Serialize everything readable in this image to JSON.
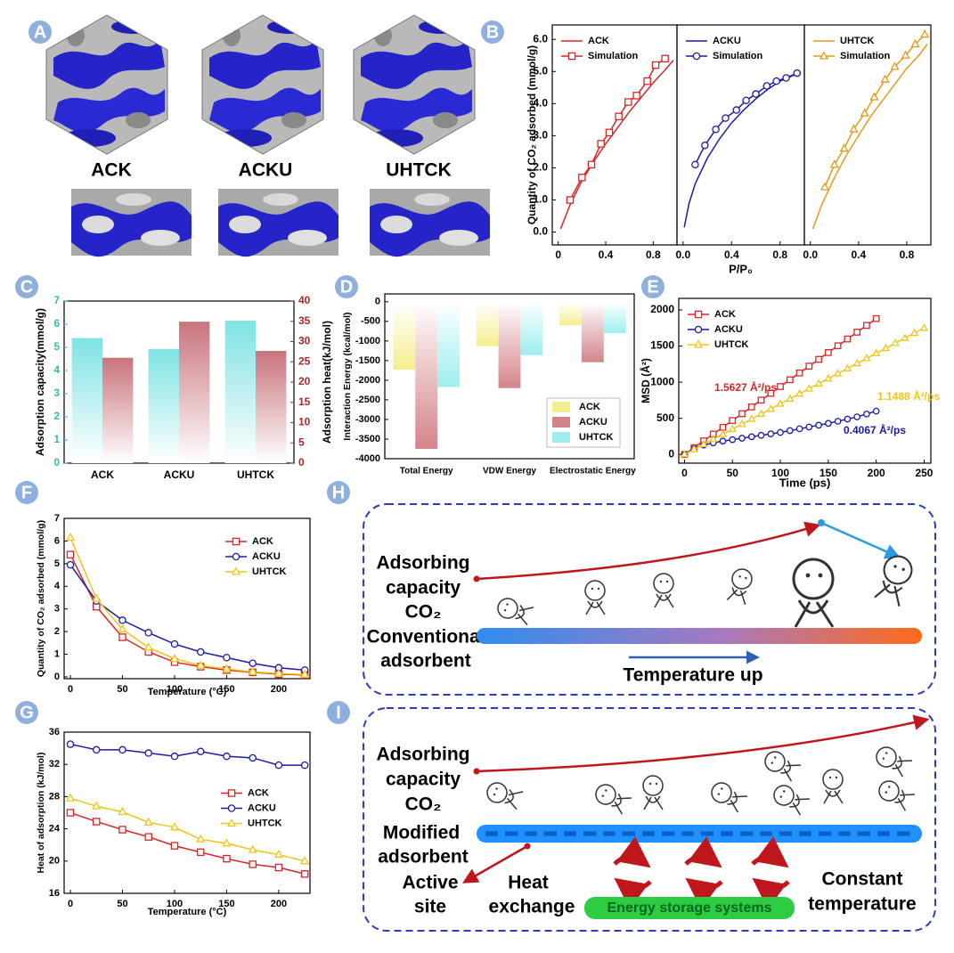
{
  "panel_labels": [
    "A",
    "B",
    "C",
    "D",
    "E",
    "F",
    "G",
    "H",
    "I"
  ],
  "structure_labels": [
    "ACK",
    "ACKU",
    "UHTCK"
  ],
  "diagram_h": {
    "lines": [
      "Adsorbing",
      "capacity",
      "CO₂",
      "Conventional",
      "adsorbent"
    ],
    "arrow_label": "Temperature up"
  },
  "diagram_i": {
    "lines": [
      "Adsorbing",
      "capacity",
      "CO₂",
      "Modified",
      "adsorbent"
    ],
    "active_site": [
      "Active",
      "site"
    ],
    "heat_exchange": [
      "Heat",
      "exchange"
    ],
    "storage": "Energy storage systems",
    "constant_temperature": [
      "Constant",
      "temperature"
    ]
  },
  "chart_data": [
    {
      "type": "line",
      "y_label": "Quantity of CO₂ adsorbed (mmol/g)",
      "xlim": [
        -0.05,
        1.0
      ],
      "ylim": [
        -0.4,
        6.45
      ],
      "xticks": [
        {
          "value": 0,
          "label": "0"
        },
        0.4,
        0.8
      ],
      "yticks": [
        {
          "value": 0,
          "label": "0.0"
        },
        {
          "value": 1,
          "label": "1.0"
        },
        {
          "value": 2,
          "label": "2.0"
        },
        {
          "value": 3,
          "label": "3.0"
        },
        {
          "value": 4,
          "label": "4.0"
        },
        {
          "value": 5,
          "label": "5.0"
        },
        {
          "value": 6,
          "label": "6.0"
        }
      ],
      "legend": "upper left",
      "series": [
        {
          "name": "ACK",
          "color": "#d62728",
          "x": [
            0.02,
            0.1,
            0.2,
            0.3,
            0.4,
            0.5,
            0.6,
            0.7,
            0.8,
            0.9,
            0.97
          ],
          "values": [
            0.1,
            0.85,
            1.6,
            2.2,
            2.75,
            3.25,
            3.75,
            4.2,
            4.65,
            5.05,
            5.35
          ]
        },
        {
          "name": "Simulation",
          "color": "#d62728",
          "marker": "square",
          "x": [
            0.1,
            0.2,
            0.28,
            0.36,
            0.43,
            0.51,
            0.59,
            0.66,
            0.75,
            0.82,
            0.9
          ],
          "values": [
            1.0,
            1.7,
            2.1,
            2.75,
            3.1,
            3.6,
            4.05,
            4.25,
            4.7,
            5.2,
            5.4
          ]
        }
      ]
    },
    {
      "type": "line",
      "x_label": "P/P₀",
      "xlim": [
        -0.05,
        1.0
      ],
      "ylim": [
        -0.4,
        6.45
      ],
      "xticks": [
        {
          "value": 0,
          "label": "0.0"
        },
        0.4,
        0.8
      ],
      "legend": "upper left",
      "series": [
        {
          "name": "ACKU",
          "color": "#1c1ca6",
          "x": [
            0.01,
            0.05,
            0.1,
            0.2,
            0.3,
            0.4,
            0.5,
            0.6,
            0.7,
            0.8,
            0.92
          ],
          "values": [
            0.15,
            0.9,
            1.5,
            2.3,
            2.9,
            3.4,
            3.8,
            4.15,
            4.45,
            4.7,
            4.9
          ]
        },
        {
          "name": "Simulation",
          "color": "#1c1ca6",
          "marker": "circle",
          "x": [
            0.1,
            0.18,
            0.27,
            0.35,
            0.44,
            0.52,
            0.6,
            0.69,
            0.77,
            0.85,
            0.94
          ],
          "values": [
            2.1,
            2.7,
            3.2,
            3.55,
            3.8,
            4.1,
            4.3,
            4.55,
            4.7,
            4.8,
            4.95
          ]
        }
      ]
    },
    {
      "type": "line",
      "xlim": [
        -0.05,
        1.0
      ],
      "ylim": [
        -0.4,
        6.45
      ],
      "xticks": [
        {
          "value": 0,
          "label": "0.0"
        },
        0.4,
        0.8
      ],
      "legend": "upper left",
      "series": [
        {
          "name": "UHTCK",
          "color": "#e39a1e",
          "x": [
            0.02,
            0.1,
            0.2,
            0.3,
            0.4,
            0.5,
            0.6,
            0.7,
            0.8,
            0.9,
            0.97
          ],
          "values": [
            0.1,
            0.9,
            1.7,
            2.4,
            3.0,
            3.6,
            4.1,
            4.6,
            5.1,
            5.5,
            5.85
          ]
        },
        {
          "name": "Simulation",
          "color": "#e39a1e",
          "marker": "triangle",
          "x": [
            0.12,
            0.2,
            0.28,
            0.36,
            0.45,
            0.53,
            0.62,
            0.7,
            0.79,
            0.87,
            0.95
          ],
          "values": [
            1.4,
            2.1,
            2.6,
            3.2,
            3.7,
            4.2,
            4.75,
            5.15,
            5.5,
            5.85,
            6.15
          ]
        }
      ]
    },
    {
      "type": "bar",
      "y_label": "Adsorption capacity(mmol/g)",
      "y2_label": "Adsorption heat(kJ/mol)",
      "categories": [
        "ACK",
        "ACKU",
        "UHTCK"
      ],
      "ylim": [
        0,
        7
      ],
      "yticks": [
        0,
        1,
        2,
        3,
        4,
        5,
        6,
        7
      ],
      "y2lim": [
        0,
        40
      ],
      "y2ticks": [
        0,
        5,
        10,
        15,
        20,
        25,
        30,
        35,
        40
      ],
      "ycolor": "#2fbcbc",
      "y2color": "#a52a2a",
      "series": [
        {
          "color": "#7fe3e3",
          "values": [
            5.4,
            4.93,
            6.15
          ]
        },
        {
          "color": "#c9747c",
          "axis": "y2",
          "values": [
            26,
            34.9,
            27.7
          ]
        }
      ]
    },
    {
      "type": "bar",
      "y_label": "Interaction Energy (kcal/mol)",
      "categories": [
        "Total Energy",
        "VDW Energy",
        "Electrostatic Energy"
      ],
      "ylim": [
        -4000,
        200
      ],
      "yticks": [
        0,
        -500,
        -1000,
        -1500,
        -2000,
        -2500,
        -3000,
        -3500,
        -4000
      ],
      "legend": "lower right",
      "series": [
        {
          "name": "ACK",
          "color": "#f5ee8e",
          "values": [
            -1730,
            -1130,
            -600
          ]
        },
        {
          "name": "ACKU",
          "color": "#d48489",
          "values": [
            -3750,
            -2200,
            -1540
          ]
        },
        {
          "name": "UHTCK",
          "color": "#9eeeee",
          "values": [
            -2170,
            -1360,
            -800
          ]
        }
      ]
    },
    {
      "type": "line",
      "y_label": "MSD (Å²)",
      "x_label": "Time (ps)",
      "xlim": [
        -6,
        257
      ],
      "ylim": [
        -120,
        2160
      ],
      "xticks": [
        0,
        50,
        100,
        150,
        200,
        250
      ],
      "yticks": [
        0,
        500,
        1000,
        1500,
        2000
      ],
      "legend": "upper left",
      "annotations": [
        "1.5627 Å²/ps",
        "0.4067 Å²/ps",
        "1.1488 Å²/ps"
      ],
      "series": [
        {
          "name": "ACK",
          "color": "#d62728",
          "marker": "square",
          "x": [
            0,
            10,
            20,
            30,
            40,
            50,
            60,
            70,
            80,
            90,
            100,
            110,
            120,
            130,
            140,
            150,
            160,
            170,
            180,
            190,
            200
          ],
          "values": [
            0,
            94,
            188,
            282,
            376,
            470,
            564,
            658,
            752,
            846,
            940,
            1034,
            1128,
            1222,
            1316,
            1410,
            1504,
            1598,
            1692,
            1786,
            1880
          ]
        },
        {
          "name": "ACKU",
          "color": "#1c1ca6",
          "marker": "circle",
          "x": [
            0,
            10,
            20,
            30,
            40,
            50,
            60,
            70,
            80,
            90,
            100,
            110,
            120,
            130,
            140,
            150,
            160,
            170,
            180,
            190,
            200
          ],
          "values": [
            0,
            80,
            130,
            160,
            185,
            205,
            225,
            245,
            265,
            285,
            305,
            330,
            355,
            380,
            405,
            430,
            460,
            490,
            520,
            560,
            600
          ]
        },
        {
          "name": "UHTCK",
          "color": "#f0c419",
          "marker": "triangle",
          "x": [
            0,
            10,
            20,
            30,
            40,
            50,
            60,
            70,
            80,
            90,
            100,
            110,
            120,
            130,
            140,
            150,
            160,
            170,
            180,
            190,
            200,
            210,
            220,
            230,
            240,
            250
          ],
          "values": [
            0,
            70,
            140,
            210,
            280,
            350,
            420,
            490,
            560,
            630,
            700,
            770,
            840,
            910,
            980,
            1050,
            1120,
            1190,
            1260,
            1330,
            1400,
            1470,
            1540,
            1610,
            1680,
            1750
          ]
        }
      ]
    },
    {
      "type": "line",
      "y_label": "Quantity of CO₂ adsorbed (mmol/g)",
      "x_label": "Temperature (°C)",
      "xlim": [
        -6,
        230
      ],
      "ylim": [
        -0.08,
        7
      ],
      "xticks": [
        0,
        50,
        100,
        150,
        200
      ],
      "yticks": [
        0,
        1,
        2,
        3,
        4,
        5,
        6,
        7
      ],
      "legend": "upper right",
      "x": [
        0,
        25,
        50,
        75,
        100,
        125,
        150,
        175,
        200,
        225
      ],
      "series": [
        {
          "name": "ACK",
          "color": "#d62728",
          "marker": "square",
          "values": [
            5.4,
            3.1,
            1.75,
            1.1,
            0.65,
            0.45,
            0.3,
            0.2,
            0.12,
            0.08
          ]
        },
        {
          "name": "ACKU",
          "color": "#1c1ca6",
          "marker": "circle",
          "values": [
            4.95,
            3.35,
            2.5,
            1.95,
            1.45,
            1.1,
            0.85,
            0.6,
            0.4,
            0.3
          ]
        },
        {
          "name": "UHTCK",
          "color": "#f0c419",
          "marker": "triangle",
          "values": [
            6.15,
            3.45,
            2.1,
            1.3,
            0.8,
            0.5,
            0.35,
            0.22,
            0.15,
            0.1
          ]
        }
      ]
    },
    {
      "type": "line",
      "y_label": "Heat of adsorption (kJ/mol)",
      "x_label": "Temperature (°C)",
      "xlim": [
        -6,
        230
      ],
      "ylim": [
        16,
        36
      ],
      "xticks": [
        0,
        50,
        100,
        150,
        200
      ],
      "yticks": [
        16,
        20,
        24,
        28,
        32,
        36
      ],
      "legend": "center right",
      "x": [
        0,
        25,
        50,
        75,
        100,
        125,
        150,
        175,
        200,
        225
      ],
      "series": [
        {
          "name": "ACK",
          "color": "#d62728",
          "marker": "square",
          "values": [
            26,
            24.9,
            23.9,
            23,
            21.9,
            21.1,
            20.3,
            19.6,
            19.2,
            18.4
          ]
        },
        {
          "name": "ACKU",
          "color": "#1c1ca6",
          "marker": "circle",
          "values": [
            34.5,
            33.8,
            33.8,
            33.4,
            33,
            33.6,
            33,
            32.8,
            31.9,
            31.9
          ]
        },
        {
          "name": "UHTCK",
          "color": "#f0c419",
          "marker": "triangle",
          "values": [
            27.8,
            26.8,
            26.1,
            24.8,
            24.2,
            22.7,
            22.2,
            21.4,
            20.8,
            20
          ]
        }
      ]
    }
  ]
}
